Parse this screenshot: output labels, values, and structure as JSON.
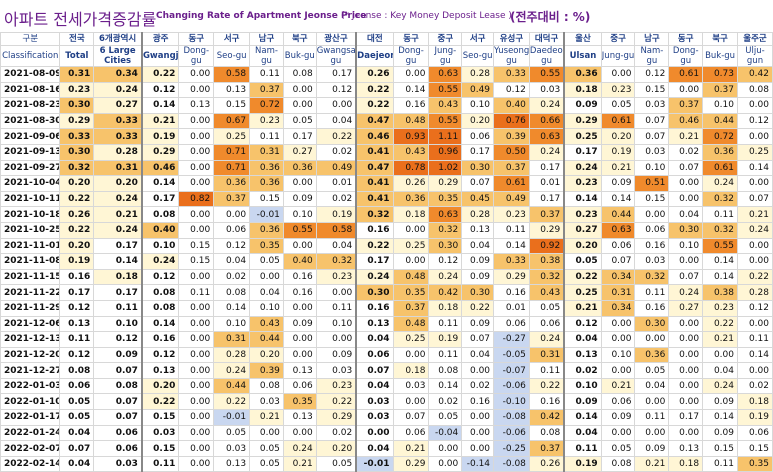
{
  "title": {
    "korean": "아파트 전세가격증감률",
    "english": "Changing Rate of Apartment Jeonse Price",
    "note": "(* Jeonse : Key Money Deposit Lease )",
    "unit": "(전주대비 : %)"
  },
  "headers": {
    "corner_ko": "구분",
    "corner_en": "Classification",
    "columns": [
      {
        "ko": "전국",
        "en": "Total"
      },
      {
        "ko": "6개광역시",
        "en": "6 Large Cities"
      },
      {
        "ko": "광주",
        "en": "Gwangju"
      },
      {
        "ko": "동구",
        "en": "Dong-gu"
      },
      {
        "ko": "서구",
        "en": "Seo-gu"
      },
      {
        "ko": "남구",
        "en": "Nam-gu"
      },
      {
        "ko": "북구",
        "en": "Buk-gu"
      },
      {
        "ko": "광산구",
        "en": "Gwangsan-gu"
      },
      {
        "ko": "대전",
        "en": "Daejeon"
      },
      {
        "ko": "동구",
        "en": "Dong-gu"
      },
      {
        "ko": "중구",
        "en": "Jung-gu"
      },
      {
        "ko": "서구",
        "en": "Seo-gu"
      },
      {
        "ko": "유성구",
        "en": "Yuseong-gu"
      },
      {
        "ko": "대덕구",
        "en": "Daedeok-gu"
      },
      {
        "ko": "울산",
        "en": "Ulsan"
      },
      {
        "ko": "중구",
        "en": "Jung-gu"
      },
      {
        "ko": "남구",
        "en": "Nam-gu"
      },
      {
        "ko": "동구",
        "en": "Dong-gu"
      },
      {
        "ko": "북구",
        "en": "Buk-gu"
      },
      {
        "ko": "울주군",
        "en": "Ulju-gun"
      }
    ]
  },
  "rows": [
    {
      "date": "2021-08-09",
      "v": [
        "0.31",
        "0.34",
        "0.22",
        "0.00",
        "0.58",
        "0.11",
        "0.08",
        "0.17",
        "0.26",
        "0.00",
        "0.63",
        "0.28",
        "0.33",
        "0.55",
        "0.36",
        "0.00",
        "0.12",
        "0.61",
        "0.73",
        "0.42"
      ]
    },
    {
      "date": "2021-08-16",
      "v": [
        "0.23",
        "0.24",
        "0.12",
        "0.00",
        "0.13",
        "0.37",
        "0.00",
        "0.12",
        "0.22",
        "0.14",
        "0.55",
        "0.49",
        "0.12",
        "0.03",
        "0.18",
        "0.23",
        "0.15",
        "0.00",
        "0.37",
        "0.08"
      ]
    },
    {
      "date": "2021-08-23",
      "v": [
        "0.30",
        "0.27",
        "0.14",
        "0.13",
        "0.15",
        "0.72",
        "0.00",
        "0.00",
        "0.22",
        "0.16",
        "0.43",
        "0.10",
        "0.40",
        "0.24",
        "0.09",
        "0.05",
        "0.03",
        "0.37",
        "0.10",
        "0.00"
      ]
    },
    {
      "date": "2021-08-30",
      "v": [
        "0.29",
        "0.33",
        "0.21",
        "0.00",
        "0.67",
        "0.23",
        "0.05",
        "0.04",
        "0.47",
        "0.48",
        "0.55",
        "0.20",
        "0.76",
        "0.66",
        "0.29",
        "0.61",
        "0.07",
        "0.46",
        "0.44",
        "0.12"
      ]
    },
    {
      "date": "2021-09-06",
      "v": [
        "0.33",
        "0.33",
        "0.19",
        "0.00",
        "0.25",
        "0.11",
        "0.17",
        "0.22",
        "0.46",
        "0.93",
        "1.11",
        "0.06",
        "0.39",
        "0.63",
        "0.25",
        "0.20",
        "0.07",
        "0.21",
        "0.72",
        "0.00"
      ]
    },
    {
      "date": "2021-09-13",
      "v": [
        "0.30",
        "0.28",
        "0.29",
        "0.00",
        "0.71",
        "0.31",
        "0.27",
        "0.02",
        "0.41",
        "0.43",
        "0.96",
        "0.17",
        "0.50",
        "0.24",
        "0.17",
        "0.19",
        "0.03",
        "0.02",
        "0.36",
        "0.25"
      ]
    },
    {
      "date": "2021-09-27",
      "v": [
        "0.32",
        "0.31",
        "0.46",
        "0.00",
        "0.71",
        "0.36",
        "0.36",
        "0.49",
        "0.47",
        "0.78",
        "1.02",
        "0.30",
        "0.37",
        "0.17",
        "0.24",
        "0.21",
        "0.10",
        "0.07",
        "0.61",
        "0.14"
      ]
    },
    {
      "date": "2021-10-04",
      "v": [
        "0.20",
        "0.20",
        "0.14",
        "0.00",
        "0.36",
        "0.36",
        "0.00",
        "0.01",
        "0.41",
        "0.26",
        "0.29",
        "0.07",
        "0.61",
        "0.01",
        "0.23",
        "0.09",
        "0.51",
        "0.00",
        "0.24",
        "0.00"
      ]
    },
    {
      "date": "2021-10-11",
      "v": [
        "0.22",
        "0.24",
        "0.17",
        "0.82",
        "0.37",
        "0.15",
        "0.09",
        "0.02",
        "0.41",
        "0.36",
        "0.35",
        "0.45",
        "0.49",
        "0.17",
        "0.14",
        "0.14",
        "0.15",
        "0.00",
        "0.32",
        "0.07"
      ]
    },
    {
      "date": "2021-10-18",
      "v": [
        "0.26",
        "0.21",
        "0.08",
        "0.00",
        "0.00",
        "-0.01",
        "0.10",
        "0.19",
        "0.32",
        "0.18",
        "0.63",
        "0.28",
        "0.23",
        "0.37",
        "0.23",
        "0.44",
        "0.00",
        "0.04",
        "0.11",
        "0.21"
      ]
    },
    {
      "date": "2021-10-25",
      "v": [
        "0.22",
        "0.24",
        "0.40",
        "0.00",
        "0.06",
        "0.36",
        "0.55",
        "0.58",
        "0.16",
        "0.00",
        "0.32",
        "0.13",
        "0.11",
        "0.29",
        "0.27",
        "0.63",
        "0.06",
        "0.30",
        "0.32",
        "0.24"
      ]
    },
    {
      "date": "2021-11-01",
      "v": [
        "0.20",
        "0.17",
        "0.10",
        "0.15",
        "0.12",
        "0.35",
        "0.00",
        "0.04",
        "0.22",
        "0.25",
        "0.30",
        "0.04",
        "0.14",
        "0.92",
        "0.20",
        "0.06",
        "0.16",
        "0.10",
        "0.55",
        "0.00"
      ]
    },
    {
      "date": "2021-11-08",
      "v": [
        "0.19",
        "0.14",
        "0.24",
        "0.15",
        "0.04",
        "0.05",
        "0.40",
        "0.32",
        "0.17",
        "0.00",
        "0.12",
        "0.09",
        "0.33",
        "0.38",
        "0.05",
        "0.07",
        "0.03",
        "0.00",
        "0.14",
        "0.00"
      ]
    },
    {
      "date": "2021-11-15",
      "v": [
        "0.16",
        "0.18",
        "0.12",
        "0.00",
        "0.02",
        "0.00",
        "0.16",
        "0.23",
        "0.24",
        "0.48",
        "0.24",
        "0.09",
        "0.29",
        "0.32",
        "0.22",
        "0.34",
        "0.32",
        "0.07",
        "0.14",
        "0.22"
      ]
    },
    {
      "date": "2021-11-22",
      "v": [
        "0.17",
        "0.17",
        "0.08",
        "0.11",
        "0.08",
        "0.04",
        "0.16",
        "0.00",
        "0.30",
        "0.35",
        "0.42",
        "0.30",
        "0.16",
        "0.43",
        "0.25",
        "0.31",
        "0.11",
        "0.24",
        "0.38",
        "0.28"
      ]
    },
    {
      "date": "2021-11-29",
      "v": [
        "0.12",
        "0.11",
        "0.08",
        "0.00",
        "0.14",
        "0.10",
        "0.00",
        "0.11",
        "0.16",
        "0.37",
        "0.18",
        "0.22",
        "0.01",
        "0.05",
        "0.21",
        "0.34",
        "0.16",
        "0.27",
        "0.23",
        "0.12"
      ]
    },
    {
      "date": "2021-12-06",
      "v": [
        "0.13",
        "0.10",
        "0.14",
        "0.00",
        "0.10",
        "0.43",
        "0.09",
        "0.10",
        "0.13",
        "0.48",
        "0.11",
        "0.09",
        "0.06",
        "0.06",
        "0.12",
        "0.00",
        "0.30",
        "0.00",
        "0.22",
        "0.00"
      ]
    },
    {
      "date": "2021-12-13",
      "v": [
        "0.11",
        "0.12",
        "0.16",
        "0.00",
        "0.31",
        "0.44",
        "0.00",
        "0.00",
        "0.04",
        "0.25",
        "0.19",
        "0.07",
        "-0.27",
        "0.24",
        "0.04",
        "0.00",
        "0.00",
        "0.00",
        "0.21",
        "0.11"
      ]
    },
    {
      "date": "2021-12-20",
      "v": [
        "0.12",
        "0.09",
        "0.12",
        "0.00",
        "0.28",
        "0.20",
        "0.00",
        "0.09",
        "0.06",
        "0.00",
        "0.11",
        "0.04",
        "-0.05",
        "0.31",
        "0.13",
        "0.10",
        "0.36",
        "0.00",
        "0.00",
        "0.14"
      ]
    },
    {
      "date": "2021-12-27",
      "v": [
        "0.08",
        "0.07",
        "0.13",
        "0.00",
        "0.24",
        "0.39",
        "0.13",
        "0.03",
        "0.07",
        "0.18",
        "0.08",
        "0.00",
        "-0.07",
        "0.11",
        "0.02",
        "0.00",
        "0.05",
        "0.00",
        "0.04",
        "0.00"
      ]
    },
    {
      "date": "2022-01-03",
      "v": [
        "0.06",
        "0.08",
        "0.20",
        "0.00",
        "0.44",
        "0.08",
        "0.06",
        "0.23",
        "0.04",
        "0.03",
        "0.14",
        "0.02",
        "-0.06",
        "0.22",
        "0.10",
        "0.21",
        "0.04",
        "0.00",
        "0.24",
        "0.02"
      ]
    },
    {
      "date": "2022-01-10",
      "v": [
        "0.05",
        "0.07",
        "0.22",
        "0.00",
        "0.22",
        "0.03",
        "0.35",
        "0.22",
        "0.03",
        "0.00",
        "0.02",
        "0.16",
        "-0.10",
        "0.16",
        "0.09",
        "0.06",
        "0.00",
        "0.00",
        "0.09",
        "0.18"
      ]
    },
    {
      "date": "2022-01-17",
      "v": [
        "0.05",
        "0.07",
        "0.15",
        "0.00",
        "-0.01",
        "0.21",
        "0.13",
        "0.29",
        "0.03",
        "0.07",
        "0.05",
        "0.00",
        "-0.08",
        "0.42",
        "0.14",
        "0.09",
        "0.11",
        "0.17",
        "0.14",
        "0.19"
      ]
    },
    {
      "date": "2022-01-24",
      "v": [
        "0.04",
        "0.06",
        "0.03",
        "0.00",
        "0.05",
        "0.00",
        "0.00",
        "0.02",
        "0.00",
        "0.06",
        "-0.04",
        "0.00",
        "-0.06",
        "0.08",
        "0.04",
        "0.00",
        "0.00",
        "0.00",
        "0.09",
        "0.06"
      ]
    },
    {
      "date": "2022-02-07",
      "v": [
        "0.07",
        "0.06",
        "0.15",
        "0.00",
        "0.03",
        "0.05",
        "0.24",
        "0.20",
        "0.04",
        "0.21",
        "0.00",
        "0.00",
        "-0.25",
        "0.37",
        "0.11",
        "0.05",
        "0.09",
        "0.13",
        "0.15",
        "0.15"
      ]
    },
    {
      "date": "2022-02-14",
      "v": [
        "0.04",
        "0.03",
        "0.11",
        "0.00",
        "0.13",
        "0.05",
        "0.21",
        "0.05",
        "-0.01",
        "0.29",
        "0.00",
        "-0.14",
        "-0.08",
        "0.26",
        "0.19",
        "0.08",
        "0.21",
        "0.18",
        "0.11",
        "0.35"
      ]
    }
  ],
  "colors": {
    "title": "#6b1f8c",
    "header_text": "#1f3f86",
    "heat_low": "#fff6d5",
    "heat_mid": "#f7c36b",
    "heat_high": "#f08a2c",
    "heat_max": "#ea6f1c",
    "negative": "#c9d7f0"
  }
}
